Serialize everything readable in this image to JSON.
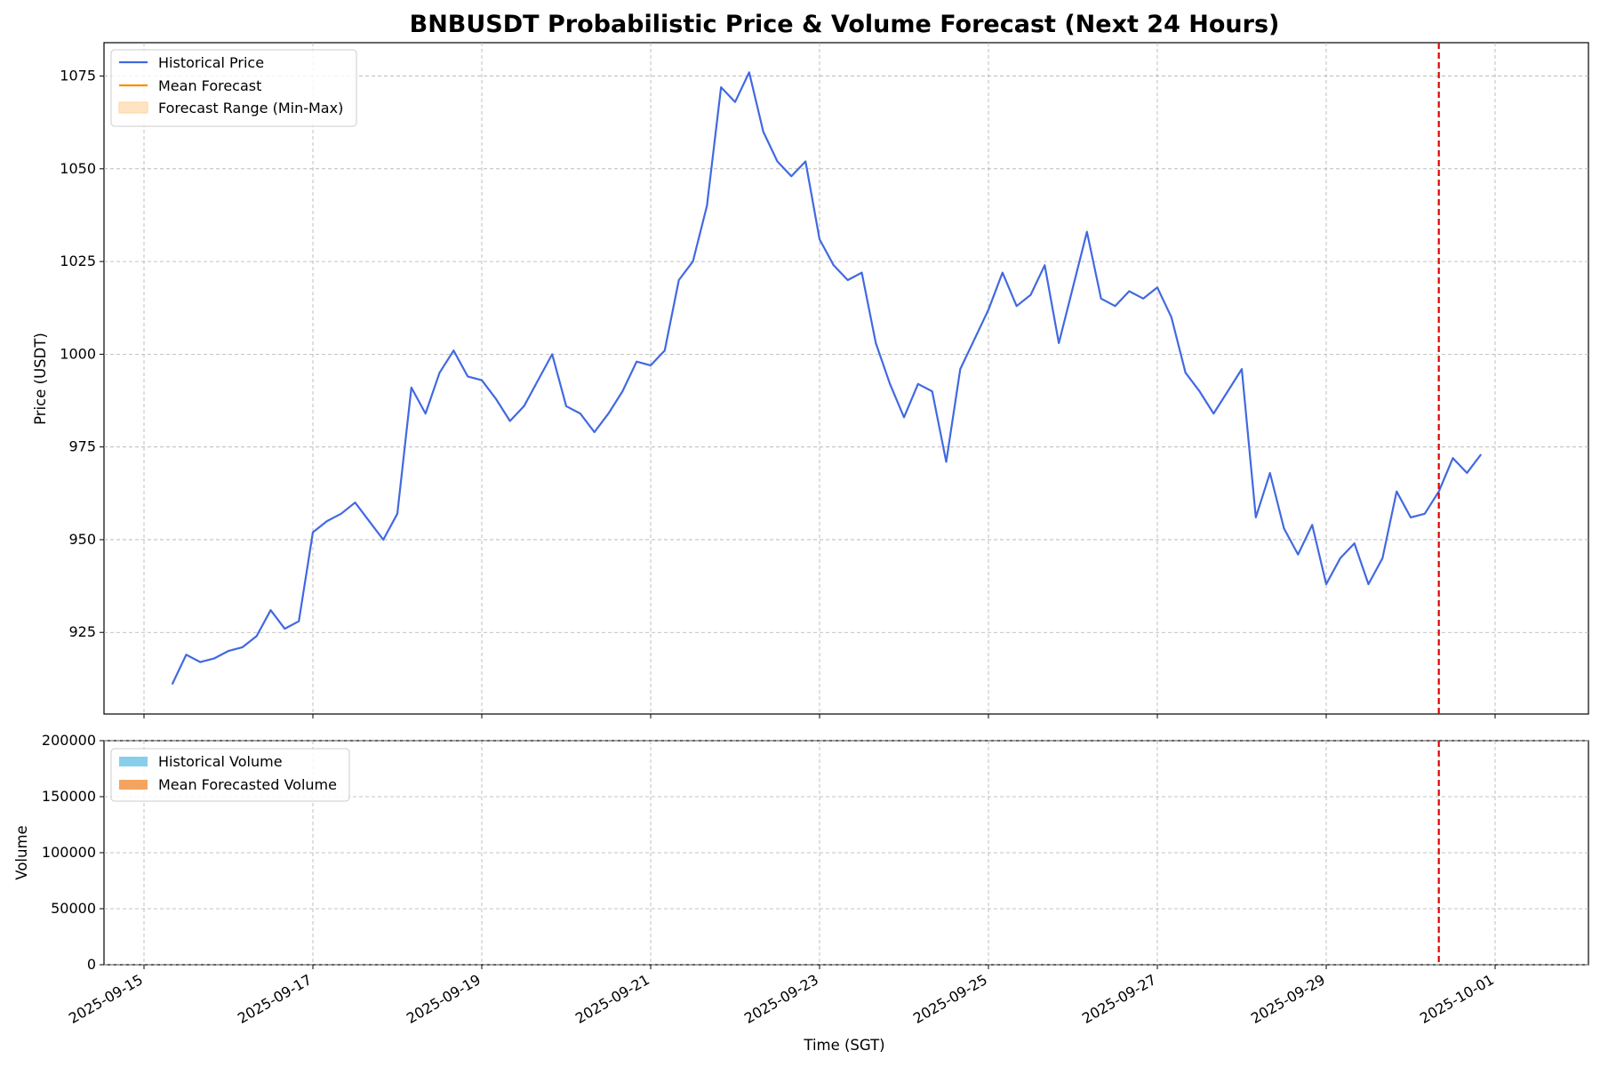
{
  "chart_data": [
    {
      "type": "line",
      "title": "BNBUSDT Probabilistic Price & Volume Forecast (Next 24 Hours)",
      "xlabel": "",
      "ylabel": "Price (USDT)",
      "ylim": [
        903,
        1084
      ],
      "yticks": [
        925,
        950,
        975,
        1000,
        1025,
        1050,
        1075
      ],
      "grid": true,
      "legend_position": "top-left",
      "forecast_start": "2025-09-30 08:00",
      "series": [
        {
          "name": "Historical Price",
          "color": "#4169e1",
          "points": [
            [
              "2025-09-15 08:00",
              911
            ],
            [
              "2025-09-15 12:00",
              919
            ],
            [
              "2025-09-15 16:00",
              917
            ],
            [
              "2025-09-15 20:00",
              918
            ],
            [
              "2025-09-16 00:00",
              920
            ],
            [
              "2025-09-16 04:00",
              921
            ],
            [
              "2025-09-16 08:00",
              924
            ],
            [
              "2025-09-16 12:00",
              931
            ],
            [
              "2025-09-16 16:00",
              926
            ],
            [
              "2025-09-16 20:00",
              928
            ],
            [
              "2025-09-17 00:00",
              952
            ],
            [
              "2025-09-17 04:00",
              955
            ],
            [
              "2025-09-17 08:00",
              957
            ],
            [
              "2025-09-17 12:00",
              960
            ],
            [
              "2025-09-17 16:00",
              955
            ],
            [
              "2025-09-17 20:00",
              950
            ],
            [
              "2025-09-18 00:00",
              957
            ],
            [
              "2025-09-18 04:00",
              991
            ],
            [
              "2025-09-18 08:00",
              984
            ],
            [
              "2025-09-18 12:00",
              995
            ],
            [
              "2025-09-18 16:00",
              1001
            ],
            [
              "2025-09-18 20:00",
              994
            ],
            [
              "2025-09-19 00:00",
              993
            ],
            [
              "2025-09-19 04:00",
              988
            ],
            [
              "2025-09-19 08:00",
              982
            ],
            [
              "2025-09-19 12:00",
              986
            ],
            [
              "2025-09-19 16:00",
              993
            ],
            [
              "2025-09-19 20:00",
              1000
            ],
            [
              "2025-09-20 00:00",
              986
            ],
            [
              "2025-09-20 04:00",
              984
            ],
            [
              "2025-09-20 08:00",
              979
            ],
            [
              "2025-09-20 12:00",
              984
            ],
            [
              "2025-09-20 16:00",
              990
            ],
            [
              "2025-09-20 20:00",
              998
            ],
            [
              "2025-09-21 00:00",
              997
            ],
            [
              "2025-09-21 04:00",
              1001
            ],
            [
              "2025-09-21 08:00",
              1020
            ],
            [
              "2025-09-21 12:00",
              1025
            ],
            [
              "2025-09-21 16:00",
              1040
            ],
            [
              "2025-09-21 20:00",
              1072
            ],
            [
              "2025-09-22 00:00",
              1068
            ],
            [
              "2025-09-22 04:00",
              1076
            ],
            [
              "2025-09-22 08:00",
              1060
            ],
            [
              "2025-09-22 12:00",
              1052
            ],
            [
              "2025-09-22 16:00",
              1048
            ],
            [
              "2025-09-22 20:00",
              1052
            ],
            [
              "2025-09-23 00:00",
              1031
            ],
            [
              "2025-09-23 04:00",
              1024
            ],
            [
              "2025-09-23 08:00",
              1020
            ],
            [
              "2025-09-23 12:00",
              1022
            ],
            [
              "2025-09-23 16:00",
              1003
            ],
            [
              "2025-09-23 20:00",
              992
            ],
            [
              "2025-09-24 00:00",
              983
            ],
            [
              "2025-09-24 04:00",
              992
            ],
            [
              "2025-09-24 08:00",
              990
            ],
            [
              "2025-09-24 12:00",
              971
            ],
            [
              "2025-09-24 16:00",
              996
            ],
            [
              "2025-09-24 20:00",
              1004
            ],
            [
              "2025-09-25 00:00",
              1012
            ],
            [
              "2025-09-25 04:00",
              1022
            ],
            [
              "2025-09-25 08:00",
              1013
            ],
            [
              "2025-09-25 12:00",
              1016
            ],
            [
              "2025-09-25 16:00",
              1024
            ],
            [
              "2025-09-25 20:00",
              1003
            ],
            [
              "2025-09-26 00:00",
              1018
            ],
            [
              "2025-09-26 04:00",
              1033
            ],
            [
              "2025-09-26 08:00",
              1015
            ],
            [
              "2025-09-26 12:00",
              1013
            ],
            [
              "2025-09-26 16:00",
              1017
            ],
            [
              "2025-09-26 20:00",
              1015
            ],
            [
              "2025-09-27 00:00",
              1018
            ],
            [
              "2025-09-27 04:00",
              1010
            ],
            [
              "2025-09-27 08:00",
              995
            ],
            [
              "2025-09-27 12:00",
              990
            ],
            [
              "2025-09-27 16:00",
              984
            ],
            [
              "2025-09-27 20:00",
              990
            ],
            [
              "2025-09-28 00:00",
              996
            ],
            [
              "2025-09-28 04:00",
              956
            ],
            [
              "2025-09-28 08:00",
              968
            ],
            [
              "2025-09-28 12:00",
              953
            ],
            [
              "2025-09-28 16:00",
              946
            ],
            [
              "2025-09-28 20:00",
              954
            ],
            [
              "2025-09-29 00:00",
              938
            ],
            [
              "2025-09-29 04:00",
              945
            ],
            [
              "2025-09-29 08:00",
              949
            ],
            [
              "2025-09-29 12:00",
              938
            ],
            [
              "2025-09-29 16:00",
              945
            ],
            [
              "2025-09-29 20:00",
              963
            ],
            [
              "2025-09-30 00:00",
              956
            ],
            [
              "2025-09-30 04:00",
              957
            ],
            [
              "2025-09-30 08:00",
              963
            ],
            [
              "2025-09-30 12:00",
              972
            ],
            [
              "2025-09-30 16:00",
              968
            ],
            [
              "2025-09-30 20:00",
              973
            ]
          ]
        },
        {
          "name": "Mean Forecast",
          "color": "#ff8c00",
          "points": []
        }
      ],
      "band": {
        "name": "Forecast Range (Min-Max)",
        "color": "#ffe4c4",
        "points": []
      }
    },
    {
      "type": "bar",
      "xlabel": "Time (SGT)",
      "ylabel": "Volume",
      "ylim": [
        0,
        200000
      ],
      "yticks": [
        0,
        50000,
        100000,
        150000,
        200000
      ],
      "xticks": [
        "2025-09-15",
        "2025-09-17",
        "2025-09-19",
        "2025-09-21",
        "2025-09-23",
        "2025-09-25",
        "2025-09-27",
        "2025-09-29",
        "2025-10-01"
      ],
      "grid": true,
      "legend_position": "top-left",
      "series": [
        {
          "name": "Historical Volume",
          "color": "#87ceeb"
        },
        {
          "name": "Mean Forecasted Volume",
          "color": "#f4a460"
        }
      ]
    }
  ]
}
